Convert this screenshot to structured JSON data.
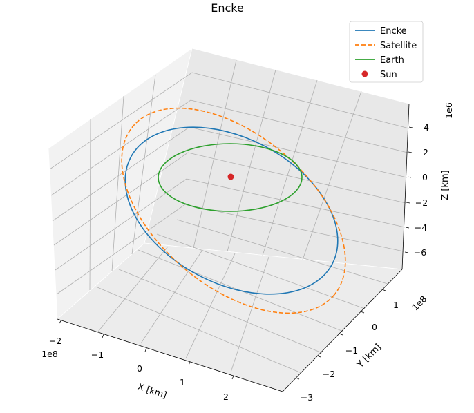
{
  "chart_data": {
    "type": "line",
    "projection": "3d",
    "title": "Encke",
    "xlabel": "X [km]",
    "ylabel": "Y [km]",
    "zlabel": "Z [km]",
    "x_ticks": [
      "−2",
      "−1",
      "0",
      "1",
      "2"
    ],
    "y_ticks": [
      "−3",
      "−2",
      "−1",
      "0",
      "1"
    ],
    "z_ticks": [
      "−6",
      "−4",
      "−2",
      "0",
      "2",
      "4"
    ],
    "x_offset": "1e8",
    "y_offset": "1e8",
    "z_offset": "1e6",
    "xlim": [
      -2.3,
      2.8
    ],
    "ylim": [
      -3.3,
      1.7
    ],
    "zlim": [
      -7,
      5.5
    ],
    "grid": true,
    "legend_position": "top-right",
    "series": [
      {
        "name": "Encke",
        "style": "solid",
        "color": "#1f77b4",
        "shape": "ellipse",
        "center": [
          0.05,
          -0.76,
          -1.4
        ],
        "semi_axes": [
          2.2,
          2.2
        ],
        "note": "tilted orbit"
      },
      {
        "name": "Satellite",
        "style": "dashed",
        "color": "#ff7f0e",
        "shape": "ellipse",
        "center": [
          0.3,
          -0.9,
          -0.9
        ],
        "semi_axes": [
          2.4,
          2.4
        ],
        "note": "tilted orbit"
      },
      {
        "name": "Earth",
        "style": "solid",
        "color": "#2ca02c",
        "shape": "circle",
        "center": [
          0,
          0,
          0
        ],
        "radius": 1.5
      },
      {
        "name": "Sun",
        "style": "marker",
        "color": "#d62728",
        "point": [
          0,
          0,
          0
        ]
      }
    ]
  }
}
